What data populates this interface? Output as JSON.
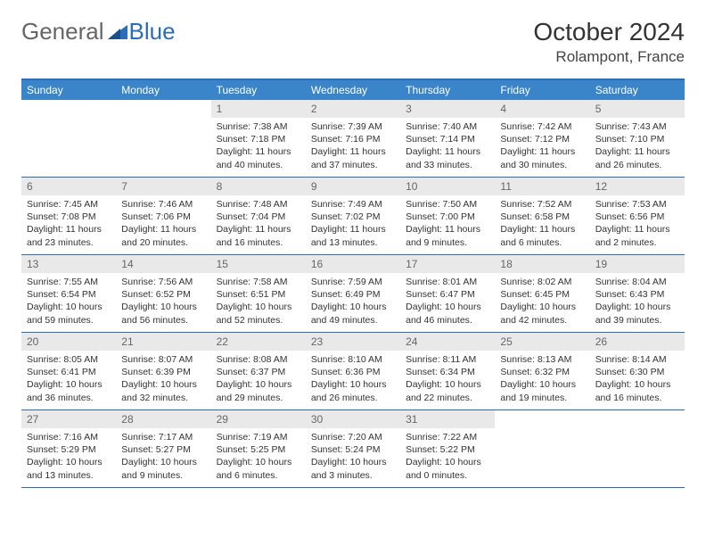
{
  "brand": {
    "part1": "General",
    "part2": "Blue"
  },
  "title": "October 2024",
  "location": "Rolampont, France",
  "colors": {
    "header_bg": "#3a85c9",
    "border": "#2a6db8",
    "daynum_bg": "#e9e9e9",
    "text": "#333333"
  },
  "dow": [
    "Sunday",
    "Monday",
    "Tuesday",
    "Wednesday",
    "Thursday",
    "Friday",
    "Saturday"
  ],
  "weeks": [
    [
      {
        "n": "",
        "sr": "",
        "ss": "",
        "dl": ""
      },
      {
        "n": "",
        "sr": "",
        "ss": "",
        "dl": ""
      },
      {
        "n": "1",
        "sr": "Sunrise: 7:38 AM",
        "ss": "Sunset: 7:18 PM",
        "dl": "Daylight: 11 hours and 40 minutes."
      },
      {
        "n": "2",
        "sr": "Sunrise: 7:39 AM",
        "ss": "Sunset: 7:16 PM",
        "dl": "Daylight: 11 hours and 37 minutes."
      },
      {
        "n": "3",
        "sr": "Sunrise: 7:40 AM",
        "ss": "Sunset: 7:14 PM",
        "dl": "Daylight: 11 hours and 33 minutes."
      },
      {
        "n": "4",
        "sr": "Sunrise: 7:42 AM",
        "ss": "Sunset: 7:12 PM",
        "dl": "Daylight: 11 hours and 30 minutes."
      },
      {
        "n": "5",
        "sr": "Sunrise: 7:43 AM",
        "ss": "Sunset: 7:10 PM",
        "dl": "Daylight: 11 hours and 26 minutes."
      }
    ],
    [
      {
        "n": "6",
        "sr": "Sunrise: 7:45 AM",
        "ss": "Sunset: 7:08 PM",
        "dl": "Daylight: 11 hours and 23 minutes."
      },
      {
        "n": "7",
        "sr": "Sunrise: 7:46 AM",
        "ss": "Sunset: 7:06 PM",
        "dl": "Daylight: 11 hours and 20 minutes."
      },
      {
        "n": "8",
        "sr": "Sunrise: 7:48 AM",
        "ss": "Sunset: 7:04 PM",
        "dl": "Daylight: 11 hours and 16 minutes."
      },
      {
        "n": "9",
        "sr": "Sunrise: 7:49 AM",
        "ss": "Sunset: 7:02 PM",
        "dl": "Daylight: 11 hours and 13 minutes."
      },
      {
        "n": "10",
        "sr": "Sunrise: 7:50 AM",
        "ss": "Sunset: 7:00 PM",
        "dl": "Daylight: 11 hours and 9 minutes."
      },
      {
        "n": "11",
        "sr": "Sunrise: 7:52 AM",
        "ss": "Sunset: 6:58 PM",
        "dl": "Daylight: 11 hours and 6 minutes."
      },
      {
        "n": "12",
        "sr": "Sunrise: 7:53 AM",
        "ss": "Sunset: 6:56 PM",
        "dl": "Daylight: 11 hours and 2 minutes."
      }
    ],
    [
      {
        "n": "13",
        "sr": "Sunrise: 7:55 AM",
        "ss": "Sunset: 6:54 PM",
        "dl": "Daylight: 10 hours and 59 minutes."
      },
      {
        "n": "14",
        "sr": "Sunrise: 7:56 AM",
        "ss": "Sunset: 6:52 PM",
        "dl": "Daylight: 10 hours and 56 minutes."
      },
      {
        "n": "15",
        "sr": "Sunrise: 7:58 AM",
        "ss": "Sunset: 6:51 PM",
        "dl": "Daylight: 10 hours and 52 minutes."
      },
      {
        "n": "16",
        "sr": "Sunrise: 7:59 AM",
        "ss": "Sunset: 6:49 PM",
        "dl": "Daylight: 10 hours and 49 minutes."
      },
      {
        "n": "17",
        "sr": "Sunrise: 8:01 AM",
        "ss": "Sunset: 6:47 PM",
        "dl": "Daylight: 10 hours and 46 minutes."
      },
      {
        "n": "18",
        "sr": "Sunrise: 8:02 AM",
        "ss": "Sunset: 6:45 PM",
        "dl": "Daylight: 10 hours and 42 minutes."
      },
      {
        "n": "19",
        "sr": "Sunrise: 8:04 AM",
        "ss": "Sunset: 6:43 PM",
        "dl": "Daylight: 10 hours and 39 minutes."
      }
    ],
    [
      {
        "n": "20",
        "sr": "Sunrise: 8:05 AM",
        "ss": "Sunset: 6:41 PM",
        "dl": "Daylight: 10 hours and 36 minutes."
      },
      {
        "n": "21",
        "sr": "Sunrise: 8:07 AM",
        "ss": "Sunset: 6:39 PM",
        "dl": "Daylight: 10 hours and 32 minutes."
      },
      {
        "n": "22",
        "sr": "Sunrise: 8:08 AM",
        "ss": "Sunset: 6:37 PM",
        "dl": "Daylight: 10 hours and 29 minutes."
      },
      {
        "n": "23",
        "sr": "Sunrise: 8:10 AM",
        "ss": "Sunset: 6:36 PM",
        "dl": "Daylight: 10 hours and 26 minutes."
      },
      {
        "n": "24",
        "sr": "Sunrise: 8:11 AM",
        "ss": "Sunset: 6:34 PM",
        "dl": "Daylight: 10 hours and 22 minutes."
      },
      {
        "n": "25",
        "sr": "Sunrise: 8:13 AM",
        "ss": "Sunset: 6:32 PM",
        "dl": "Daylight: 10 hours and 19 minutes."
      },
      {
        "n": "26",
        "sr": "Sunrise: 8:14 AM",
        "ss": "Sunset: 6:30 PM",
        "dl": "Daylight: 10 hours and 16 minutes."
      }
    ],
    [
      {
        "n": "27",
        "sr": "Sunrise: 7:16 AM",
        "ss": "Sunset: 5:29 PM",
        "dl": "Daylight: 10 hours and 13 minutes."
      },
      {
        "n": "28",
        "sr": "Sunrise: 7:17 AM",
        "ss": "Sunset: 5:27 PM",
        "dl": "Daylight: 10 hours and 9 minutes."
      },
      {
        "n": "29",
        "sr": "Sunrise: 7:19 AM",
        "ss": "Sunset: 5:25 PM",
        "dl": "Daylight: 10 hours and 6 minutes."
      },
      {
        "n": "30",
        "sr": "Sunrise: 7:20 AM",
        "ss": "Sunset: 5:24 PM",
        "dl": "Daylight: 10 hours and 3 minutes."
      },
      {
        "n": "31",
        "sr": "Sunrise: 7:22 AM",
        "ss": "Sunset: 5:22 PM",
        "dl": "Daylight: 10 hours and 0 minutes."
      },
      {
        "n": "",
        "sr": "",
        "ss": "",
        "dl": ""
      },
      {
        "n": "",
        "sr": "",
        "ss": "",
        "dl": ""
      }
    ]
  ]
}
